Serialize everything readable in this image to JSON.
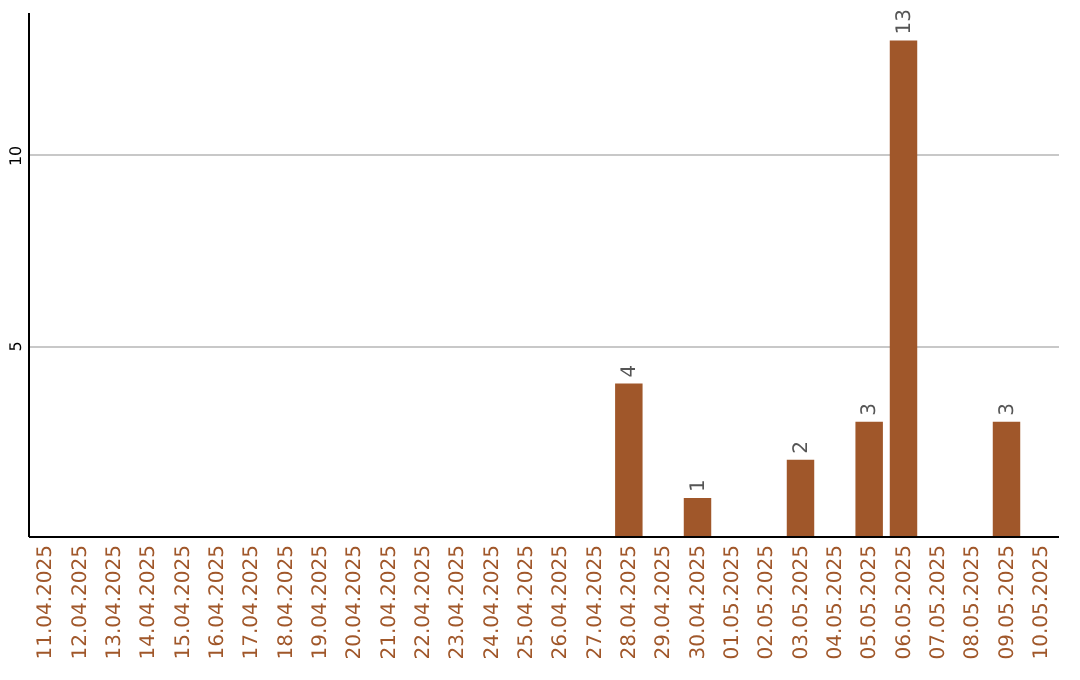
{
  "chart_data": {
    "type": "bar",
    "categories": [
      "11.04.2025",
      "12.04.2025",
      "13.04.2025",
      "14.04.2025",
      "15.04.2025",
      "16.04.2025",
      "17.04.2025",
      "18.04.2025",
      "19.04.2025",
      "20.04.2025",
      "21.04.2025",
      "22.04.2025",
      "23.04.2025",
      "24.04.2025",
      "25.04.2025",
      "26.04.2025",
      "27.04.2025",
      "28.04.2025",
      "29.04.2025",
      "30.04.2025",
      "01.05.2025",
      "02.05.2025",
      "03.05.2025",
      "04.05.2025",
      "05.05.2025",
      "06.05.2025",
      "07.05.2025",
      "08.05.2025",
      "09.05.2025",
      "10.05.2025"
    ],
    "values": [
      0,
      0,
      0,
      0,
      0,
      0,
      0,
      0,
      0,
      0,
      0,
      0,
      0,
      0,
      0,
      0,
      0,
      4,
      0,
      1,
      0,
      0,
      2,
      0,
      3,
      13,
      0,
      0,
      3,
      0
    ],
    "value_labels": [
      null,
      null,
      null,
      null,
      null,
      null,
      null,
      null,
      null,
      null,
      null,
      null,
      null,
      null,
      null,
      null,
      null,
      "4",
      null,
      "1",
      null,
      null,
      "2",
      null,
      "3",
      "13",
      null,
      null,
      "3",
      null
    ],
    "color": "#a0572a",
    "ylim": [
      0,
      13.75
    ],
    "yticks": [
      5,
      10
    ],
    "grid": "y"
  }
}
